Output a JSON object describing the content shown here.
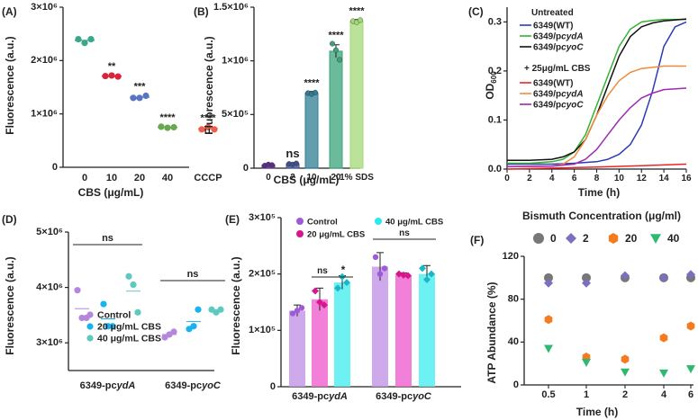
{
  "chart_data": [
    {
      "panel": "(A)",
      "type": "scatter",
      "ylabel": "Fluorescence (a.u.)",
      "xlabel": "CBS (μg/mL)",
      "yticks": [
        "0",
        "1×10⁶",
        "2×10⁶",
        "3×10⁶"
      ],
      "ylim": [
        0,
        3000000
      ],
      "categories": [
        "0",
        "10",
        "20",
        "40",
        "CCCP"
      ],
      "colors": [
        "#3aa68c",
        "#d9243a",
        "#5a74c2",
        "#6aa84f",
        "#ef5e4a"
      ],
      "points": [
        [
          2400000,
          2330000,
          2400000
        ],
        [
          1710000,
          1720000,
          1700000
        ],
        [
          1300000,
          1300000,
          1340000
        ],
        [
          760000,
          740000,
          750000
        ],
        [
          710000,
          750000,
          710000
        ]
      ],
      "sig": [
        "",
        "**",
        "***",
        "****",
        "****"
      ]
    },
    {
      "panel": "(B)",
      "type": "bar",
      "ylabel": "Fluorescence (a.u.)",
      "xlabel": "CBS (μg/mL)",
      "yticks": [
        "0",
        "5×10⁵",
        "1×10⁶",
        "1.5×10⁶"
      ],
      "ylim": [
        0,
        1500000
      ],
      "categories": [
        "0",
        "2",
        "10",
        "20",
        "1% SDS"
      ],
      "values": [
        30000,
        40000,
        700000,
        1090000,
        1370000
      ],
      "errors": [
        10000,
        10000,
        15000,
        60000,
        15000
      ],
      "colors": [
        "#5b2d86",
        "#3d4f8c",
        "#2f7d94",
        "#39a37a",
        "#a3d977"
      ],
      "points": [
        [
          25000,
          35000,
          30000
        ],
        [
          40000,
          35000,
          45000
        ],
        [
          700000,
          690000,
          705000
        ],
        [
          1160000,
          1100000,
          1010000
        ],
        [
          1370000,
          1360000,
          1380000
        ]
      ],
      "sig": [
        "",
        "ns",
        "****",
        "****",
        "****"
      ]
    },
    {
      "panel": "(C)",
      "type": "line",
      "ylabel": "OD600",
      "ylabel_main": "OD",
      "ylabel_sub": "600",
      "xlabel": "Time (h)",
      "xticks": [
        "0",
        "2",
        "4",
        "6",
        "8",
        "10",
        "12",
        "14",
        "16"
      ],
      "xlim": [
        0,
        16
      ],
      "yticks": [
        "0.0",
        "0.1",
        "0.2",
        "0.3"
      ],
      "ylim": [
        0,
        0.33
      ],
      "legend_untreated": "Untreated",
      "legend_treated": "+ 25μg/mL CBS",
      "series": [
        {
          "name": "6349(WT)",
          "group": "Untreated",
          "color": "#2a3ab8",
          "x": [
            0,
            2,
            4,
            6,
            8,
            9,
            10,
            11,
            12,
            13,
            14,
            15,
            16
          ],
          "y": [
            0.01,
            0.01,
            0.01,
            0.012,
            0.015,
            0.02,
            0.03,
            0.05,
            0.09,
            0.16,
            0.25,
            0.29,
            0.3
          ]
        },
        {
          "name": "6349/pcydA",
          "italic": "cydA",
          "group": "Untreated",
          "color": "#34b233",
          "x": [
            0,
            2,
            4,
            5,
            6,
            7,
            8,
            9,
            10,
            11,
            12,
            13,
            14,
            16
          ],
          "y": [
            0.012,
            0.012,
            0.015,
            0.02,
            0.035,
            0.07,
            0.13,
            0.19,
            0.25,
            0.285,
            0.3,
            0.303,
            0.305,
            0.305
          ]
        },
        {
          "name": "6349/pcyoC",
          "italic": "cyoC",
          "group": "Untreated",
          "color": "#111111",
          "x": [
            0,
            2,
            4,
            5,
            6,
            7,
            8,
            9,
            10,
            11,
            12,
            13,
            14,
            16
          ],
          "y": [
            0.018,
            0.018,
            0.02,
            0.025,
            0.035,
            0.06,
            0.11,
            0.17,
            0.23,
            0.27,
            0.29,
            0.298,
            0.302,
            0.306
          ]
        },
        {
          "name": "6349(WT)",
          "group": "+ 25μg/mL CBS",
          "color": "#e8262a",
          "x": [
            0,
            4,
            8,
            12,
            16
          ],
          "y": [
            0.0,
            0.002,
            0.004,
            0.007,
            0.01
          ]
        },
        {
          "name": "6349/pcydA",
          "italic": "cydA",
          "group": "+ 25μg/mL CBS",
          "color": "#f08a3c",
          "x": [
            0,
            4,
            5,
            6,
            7,
            8,
            9,
            10,
            11,
            12,
            14,
            16
          ],
          "y": [
            0.005,
            0.006,
            0.01,
            0.025,
            0.06,
            0.11,
            0.15,
            0.18,
            0.197,
            0.205,
            0.21,
            0.21
          ]
        },
        {
          "name": "6349/pcyoC",
          "italic": "cyoC",
          "group": "+ 25μg/mL CBS",
          "color": "#9c2bb0",
          "x": [
            0,
            4,
            6,
            7,
            8,
            9,
            10,
            11,
            12,
            13,
            14,
            16
          ],
          "y": [
            0.005,
            0.006,
            0.01,
            0.02,
            0.04,
            0.07,
            0.1,
            0.125,
            0.145,
            0.155,
            0.162,
            0.165
          ]
        }
      ]
    },
    {
      "panel": "(D)",
      "type": "scatter",
      "ylabel": "Fluorescence (a.u.)",
      "yticks": [
        "3×10⁶",
        "4×10⁶",
        "5×10⁶"
      ],
      "ylim": [
        2500000,
        5000000
      ],
      "groups": [
        {
          "label": "6349-pcydA",
          "prefix": "6349-pc",
          "italic": "ydA"
        },
        {
          "label": "6349-pcyoC",
          "prefix": "6349-pc",
          "italic": "yoC"
        }
      ],
      "series": [
        {
          "name": "Control",
          "color": "#b487dc",
          "points": [
            [
              3950000,
              3450000,
              3450000
            ],
            [
              3100000,
              3150000,
              3200000
            ]
          ]
        },
        {
          "name": "20 μg/mL CBS",
          "color": "#19b4f0",
          "points": [
            [
              3700000,
              3300000,
              3300000
            ],
            [
              3250000,
              3300000,
              3600000
            ]
          ]
        },
        {
          "name": "40 μg/mL CBS",
          "color": "#5ec9bf",
          "points": [
            [
              4200000,
              4050000,
              3550000
            ],
            [
              3600000,
              3550000,
              3600000
            ]
          ]
        }
      ],
      "sig": [
        "ns",
        "ns"
      ]
    },
    {
      "panel": "(E)",
      "type": "bar",
      "ylabel": "Fluorescence (a.u.)",
      "yticks": [
        "0",
        "1×10⁵",
        "2×10⁵",
        "3×10⁵"
      ],
      "ylim": [
        0,
        300000
      ],
      "groups": [
        {
          "label": "6349-pcydA",
          "prefix": "6349-pc",
          "italic": "ydA"
        },
        {
          "label": "6349-pcyoC",
          "prefix": "6349-pc",
          "italic": "yoC"
        }
      ],
      "series": [
        {
          "name": "Control",
          "color": "#c69ae8",
          "values": [
            135000,
            213000
          ],
          "errors": [
            10000,
            25000
          ],
          "points": [
            [
              130000,
              135000,
              140000
            ],
            [
              230000,
              200000,
              210000
            ]
          ]
        },
        {
          "name": "20 μg/mL CBS",
          "color": "#f06ad2",
          "values": [
            155000,
            198000
          ],
          "errors": [
            20000,
            4000
          ],
          "points": [
            [
              170000,
              150000,
              145000
            ],
            [
              200000,
              198000,
              197000
            ]
          ]
        },
        {
          "name": "40 μg/mL CBS",
          "color": "#55eef0",
          "values": [
            185000,
            200000
          ],
          "errors": [
            12000,
            15000
          ],
          "points": [
            [
              175000,
              195000,
              185000
            ],
            [
              210000,
              190000,
              200000
            ]
          ]
        }
      ],
      "sig_labels": [
        "ns",
        "*",
        "ns"
      ]
    },
    {
      "panel": "(F)",
      "type": "scatter",
      "title": "Bismuth Concentration (μg/ml)",
      "ylabel": "ATP Abundance (%)",
      "xlabel": "Time (h)",
      "categories": [
        "0.5",
        "1",
        "2",
        "4",
        "6"
      ],
      "yticks": [
        "0",
        "40",
        "80",
        "120"
      ],
      "ylim": [
        0,
        120
      ],
      "series": [
        {
          "name": "0",
          "color": "#777777",
          "marker": "circle",
          "values": [
            100,
            100,
            100,
            100,
            100
          ]
        },
        {
          "name": "2",
          "color": "#7b6fbf",
          "marker": "diamond",
          "values": [
            95,
            95,
            102,
            100,
            103
          ]
        },
        {
          "name": "20",
          "color": "#f47b20",
          "marker": "hexagon",
          "values": [
            61,
            26,
            24,
            44,
            55
          ]
        },
        {
          "name": "40",
          "color": "#2eb872",
          "marker": "triangle-down",
          "values": [
            34,
            21,
            12,
            11,
            15
          ]
        }
      ]
    }
  ]
}
